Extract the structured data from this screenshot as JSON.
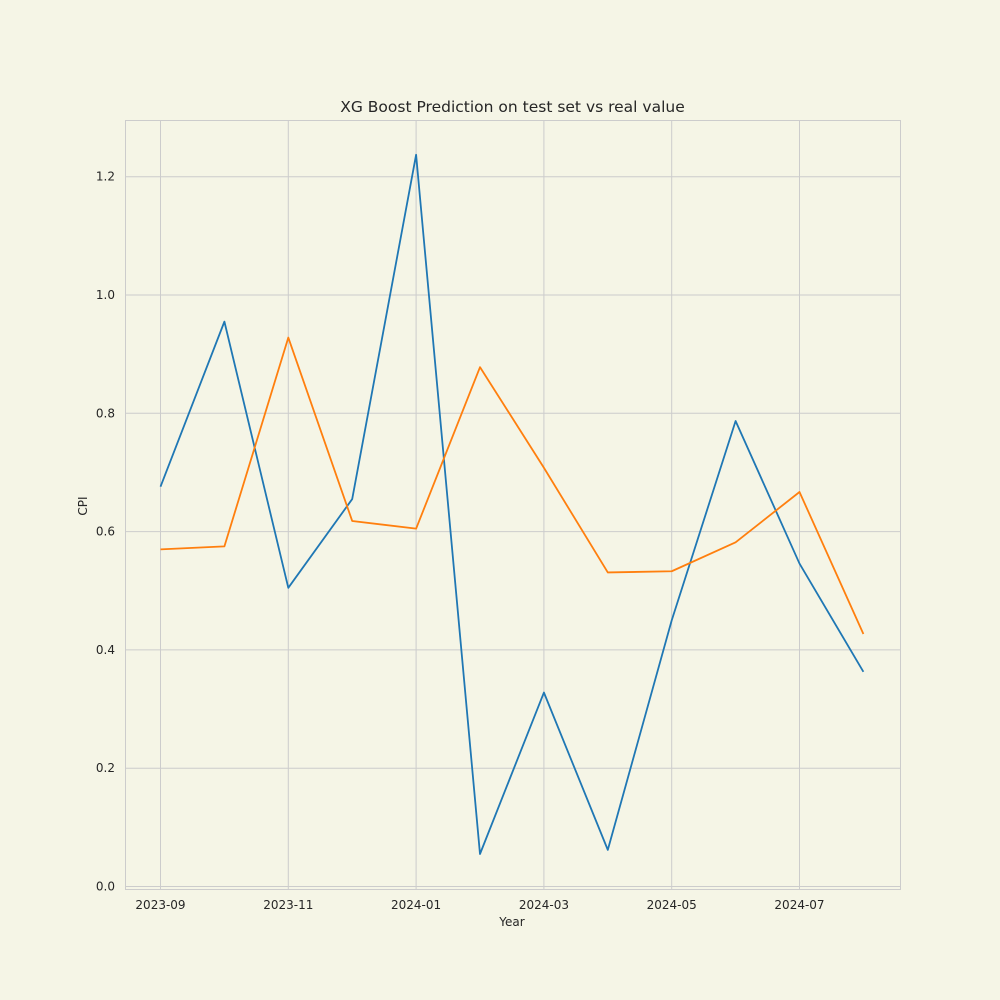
{
  "chart_data": {
    "type": "line",
    "title": "XG Boost Prediction on test set vs real value",
    "xlabel": "Year",
    "ylabel": "CPI",
    "x": [
      "2023-09",
      "2023-10",
      "2023-11",
      "2023-12",
      "2024-01",
      "2024-02",
      "2024-03",
      "2024-04",
      "2024-05",
      "2024-06",
      "2024-07",
      "2024-08"
    ],
    "x_tick_labels": [
      "2023-09",
      "2023-11",
      "2024-01",
      "2024-03",
      "2024-05",
      "2024-07"
    ],
    "y_tick_labels": [
      "0.0",
      "0.2",
      "0.4",
      "0.6",
      "0.8",
      "1.0",
      "1.2"
    ],
    "ylim": [
      -0.005,
      1.295
    ],
    "grid": true,
    "series": [
      {
        "color": "#1f77b4",
        "values": [
          0.676,
          0.955,
          0.505,
          0.655,
          1.237,
          0.055,
          0.328,
          0.062,
          0.45,
          0.787,
          0.546,
          0.363
        ]
      },
      {
        "color": "#ff7f0e",
        "values": [
          0.57,
          0.575,
          0.928,
          0.618,
          0.605,
          0.878,
          0.708,
          0.531,
          0.533,
          0.582,
          0.667,
          0.427
        ]
      }
    ]
  }
}
